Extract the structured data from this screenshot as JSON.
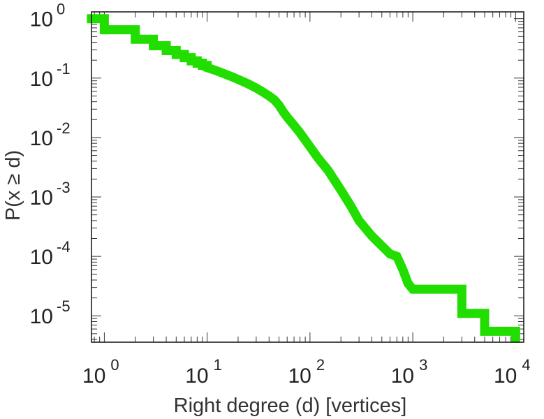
{
  "chart_data": {
    "type": "line",
    "step": true,
    "xlabel": "Right degree (d) [vertices]",
    "ylabel": "P(x ≥ d)",
    "xscale": "log",
    "yscale": "log",
    "xlim": [
      0.75,
      12000
    ],
    "ylim": [
      3.6e-06,
      1.3
    ],
    "grid": false,
    "legend": "none",
    "series_color": "#22dd00",
    "x_ticks": [
      {
        "base": "10",
        "exp": "0",
        "value": 1
      },
      {
        "base": "10",
        "exp": "1",
        "value": 10
      },
      {
        "base": "10",
        "exp": "2",
        "value": 100
      },
      {
        "base": "10",
        "exp": "3",
        "value": 1000
      },
      {
        "base": "10",
        "exp": "4",
        "value": 10000
      }
    ],
    "y_ticks": [
      {
        "base": "10",
        "exp": "0",
        "value": 1
      },
      {
        "base": "10",
        "exp": "-1",
        "value": 0.1
      },
      {
        "base": "10",
        "exp": "-2",
        "value": 0.01
      },
      {
        "base": "10",
        "exp": "-3",
        "value": 0.001
      },
      {
        "base": "10",
        "exp": "-4",
        "value": 0.0001
      },
      {
        "base": "10",
        "exp": "-5",
        "value": 1e-05
      }
    ],
    "series": [
      {
        "points": [
          [
            0.75,
            1.0
          ],
          [
            1,
            1.0
          ],
          [
            1,
            0.65
          ],
          [
            2,
            0.65
          ],
          [
            2,
            0.45
          ],
          [
            3,
            0.45
          ],
          [
            3,
            0.35
          ],
          [
            4,
            0.35
          ],
          [
            4,
            0.29
          ],
          [
            5,
            0.29
          ],
          [
            5,
            0.25
          ],
          [
            6,
            0.25
          ],
          [
            6,
            0.22
          ],
          [
            7,
            0.22
          ],
          [
            7,
            0.195
          ],
          [
            8,
            0.195
          ],
          [
            8,
            0.178
          ],
          [
            9,
            0.178
          ],
          [
            9,
            0.163
          ],
          [
            10,
            0.163
          ],
          [
            10,
            0.15
          ],
          [
            12,
            0.135
          ],
          [
            14,
            0.122
          ],
          [
            17,
            0.107
          ],
          [
            20,
            0.095
          ],
          [
            25,
            0.08
          ],
          [
            30,
            0.068
          ],
          [
            35,
            0.058
          ],
          [
            40,
            0.05
          ],
          [
            45,
            0.043
          ],
          [
            50,
            0.035
          ],
          [
            55,
            0.027
          ],
          [
            60,
            0.022
          ],
          [
            70,
            0.016
          ],
          [
            80,
            0.012
          ],
          [
            100,
            0.007
          ],
          [
            120,
            0.0045
          ],
          [
            150,
            0.0028
          ],
          [
            200,
            0.0013
          ],
          [
            250,
            0.0007
          ],
          [
            300,
            0.0004
          ],
          [
            400,
            0.00022
          ],
          [
            500,
            0.00015
          ],
          [
            600,
            0.00011
          ],
          [
            700,
            0.0001
          ],
          [
            800,
            6e-05
          ],
          [
            900,
            3.5e-05
          ],
          [
            1000,
            2.8e-05
          ],
          [
            3000,
            2.8e-05
          ],
          [
            3000,
            1.1e-05
          ],
          [
            5000,
            1.1e-05
          ],
          [
            5000,
            5.5e-06
          ],
          [
            10000,
            5.5e-06
          ],
          [
            10000,
            4.2e-06
          ]
        ]
      }
    ]
  }
}
